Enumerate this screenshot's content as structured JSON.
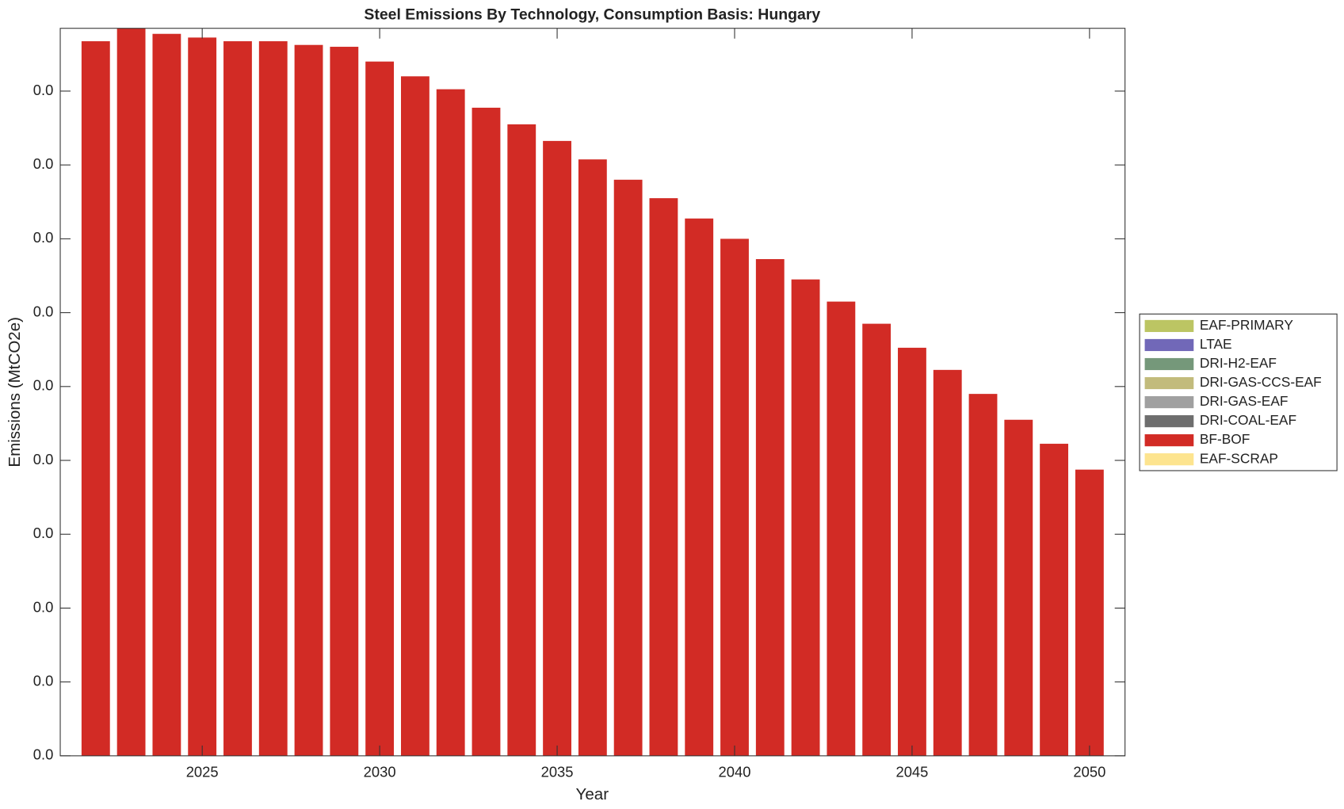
{
  "chart_data": {
    "type": "stacked_bar",
    "title": "Steel Emissions By Technology, Consumption Basis: Hungary",
    "x_label": "Year",
    "y_label": "Emissions (MtCO2e)",
    "x": [
      2022,
      2023,
      2024,
      2025,
      2026,
      2027,
      2028,
      2029,
      2030,
      2031,
      2032,
      2033,
      2034,
      2035,
      2036,
      2037,
      2038,
      2039,
      2040,
      2041,
      2042,
      2043,
      2044,
      2045,
      2046,
      2047,
      2048,
      2049,
      2050
    ],
    "xlim": [
      2021,
      2051
    ],
    "xticks": [
      2025,
      2030,
      2035,
      2040,
      2045,
      2050
    ],
    "ylim": [
      0,
      0.0394
    ],
    "yticks": [
      {
        "value": 0,
        "label": "0.0"
      },
      {
        "value": 0.004,
        "label": "0.0"
      },
      {
        "value": 0.008,
        "label": "0.0"
      },
      {
        "value": 0.012,
        "label": "0.0"
      },
      {
        "value": 0.016,
        "label": "0.0"
      },
      {
        "value": 0.02,
        "label": "0.0"
      },
      {
        "value": 0.024,
        "label": "0.0"
      },
      {
        "value": 0.028,
        "label": "0.0"
      },
      {
        "value": 0.032,
        "label": "0.0"
      },
      {
        "value": 0.036,
        "label": "0.0"
      }
    ],
    "grid": false,
    "legend": "right",
    "series": [
      {
        "name": "EAF-PRIMARY",
        "color": "#bcc563",
        "values": [
          0,
          0,
          0,
          0,
          0,
          0,
          0,
          0,
          0,
          0,
          0,
          0,
          0,
          0,
          0,
          0,
          0,
          0,
          0,
          0,
          0,
          0,
          0,
          0,
          0,
          0,
          0,
          0,
          0
        ]
      },
      {
        "name": "LTAE",
        "color": "#7168b8",
        "values": [
          0,
          0,
          0,
          0,
          0,
          0,
          0,
          0,
          0,
          0,
          0,
          0,
          0,
          0,
          0,
          0,
          0,
          0,
          0,
          0,
          0,
          0,
          0,
          0,
          0,
          0,
          0,
          0,
          0
        ]
      },
      {
        "name": "DRI-H2-EAF",
        "color": "#75987a",
        "values": [
          0,
          0,
          0,
          0,
          0,
          0,
          0,
          0,
          0,
          0,
          0,
          0,
          0,
          0,
          0,
          0,
          0,
          0,
          0,
          0,
          0,
          0,
          0,
          0,
          0,
          0,
          0,
          0,
          0
        ]
      },
      {
        "name": "DRI-GAS-CCS-EAF",
        "color": "#c2bb7c",
        "values": [
          0,
          0,
          0,
          0,
          0,
          0,
          0,
          0,
          0,
          0,
          0,
          0,
          0,
          0,
          0,
          0,
          0,
          0,
          0,
          0,
          0,
          0,
          0,
          0,
          0,
          0,
          0,
          0,
          0
        ]
      },
      {
        "name": "DRI-GAS-EAF",
        "color": "#a0a0a0",
        "values": [
          0,
          0,
          0,
          0,
          0,
          0,
          0,
          0,
          0,
          0,
          0,
          0,
          0,
          0,
          0,
          0,
          0,
          0,
          0,
          0,
          0,
          0,
          0,
          0,
          0,
          0,
          0,
          0,
          0
        ]
      },
      {
        "name": "DRI-COAL-EAF",
        "color": "#6e6e6e",
        "values": [
          0,
          0,
          0,
          0,
          0,
          0,
          0,
          0,
          0,
          0,
          0,
          0,
          0,
          0,
          0,
          0,
          0,
          0,
          0,
          0,
          0,
          0,
          0,
          0,
          0,
          0,
          0,
          0,
          0
        ]
      },
      {
        "name": "BF-BOF",
        "color": "#d22b25",
        "values": [
          0.0387,
          0.0394,
          0.0391,
          0.0389,
          0.0387,
          0.0387,
          0.0385,
          0.0384,
          0.0376,
          0.0368,
          0.0361,
          0.0351,
          0.0342,
          0.0333,
          0.0323,
          0.0312,
          0.0302,
          0.0291,
          0.028,
          0.0269,
          0.0258,
          0.0246,
          0.0234,
          0.0221,
          0.0209,
          0.0196,
          0.0182,
          0.0169,
          0.0155
        ]
      },
      {
        "name": "EAF-SCRAP",
        "color": "#fde48f",
        "values": [
          0,
          0,
          0,
          0,
          0,
          0,
          0,
          0,
          0,
          0,
          0,
          0,
          0,
          0,
          0,
          0,
          0,
          0,
          0,
          0,
          0,
          0,
          0,
          0,
          0,
          0,
          0,
          0,
          0
        ]
      }
    ]
  }
}
